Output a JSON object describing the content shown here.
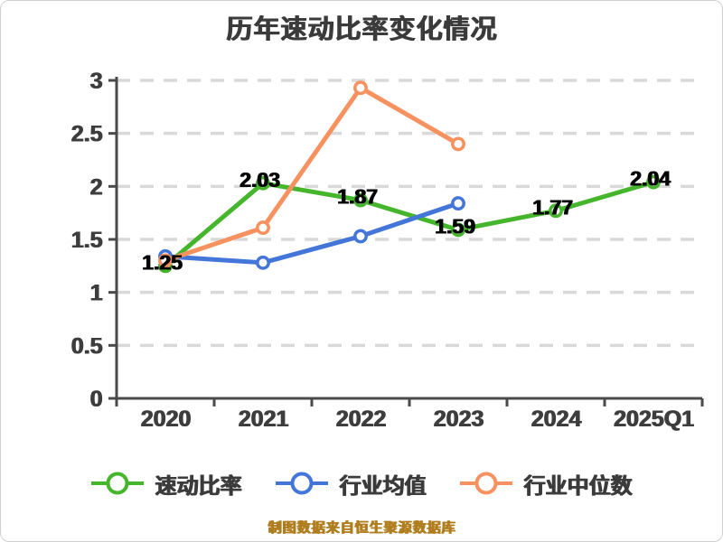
{
  "colors": {
    "background": "#ffffff",
    "border": "#cfcfcf",
    "axis": "#4a4a4a",
    "grid": "#d9d9d9",
    "text": "#3b3b3b",
    "data_label": "#050505",
    "note": "#b07d1e"
  },
  "chart_data": {
    "type": "line",
    "title": "历年速动比率变化情况",
    "footnote": "制图数据来自恒生聚源数据库",
    "categories": [
      "2020",
      "2021",
      "2022",
      "2023",
      "2024",
      "2025Q1"
    ],
    "ylim": [
      0,
      3
    ],
    "yticks": [
      "0",
      "0.5",
      "1",
      "1.5",
      "2",
      "2.5",
      "3"
    ],
    "grid": "horizontal-dashed",
    "legend_position": "bottom",
    "series": [
      {
        "name": "速动比率",
        "color": "#45b62c",
        "values": [
          1.25,
          2.03,
          1.87,
          1.59,
          1.77,
          2.04
        ],
        "labels": [
          "1.25",
          "2.03",
          "1.87",
          "1.59",
          "1.77",
          "2.04"
        ]
      },
      {
        "name": "行业均值",
        "color": "#4376d8",
        "values": [
          1.34,
          1.28,
          1.53,
          1.84,
          null,
          null
        ],
        "labels": null
      },
      {
        "name": "行业中位数",
        "color": "#f7915f",
        "values": [
          1.3,
          1.61,
          2.93,
          2.4,
          null,
          null
        ],
        "labels": null
      }
    ]
  }
}
